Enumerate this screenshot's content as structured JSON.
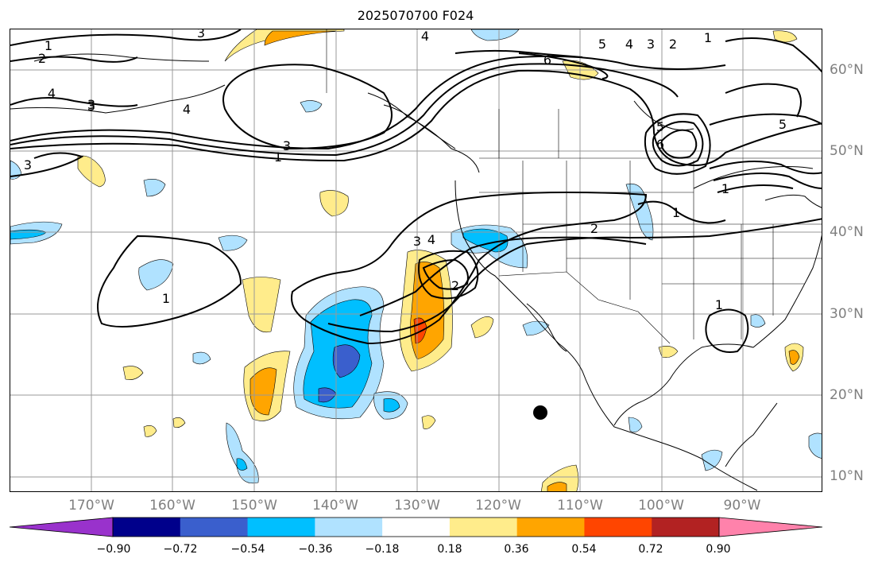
{
  "title": "2025070700 F024",
  "lon_labels": [
    "170°W",
    "160°W",
    "150°W",
    "140°W",
    "130°W",
    "120°W",
    "110°W",
    "100°W",
    "90°W"
  ],
  "lat_labels": [
    "60°N",
    "50°N",
    "40°N",
    "30°N",
    "20°N",
    "10°N"
  ],
  "colorbar": {
    "ticks": [
      "−0.90",
      "−0.72",
      "−0.54",
      "−0.36",
      "−0.18",
      "0.18",
      "0.36",
      "0.54",
      "0.72",
      "0.90"
    ],
    "colors": [
      "#9932cc",
      "#00008b",
      "#3a5fcd",
      "#00bfff",
      "#b0e2ff",
      "#ffffff",
      "#ffec8b",
      "#ffa500",
      "#ff4500",
      "#b22222",
      "#ff82ab"
    ]
  },
  "contour_labels": [
    "1",
    "2",
    "3",
    "4",
    "3",
    "4",
    "1",
    "3",
    "4",
    "6",
    "5",
    "4",
    "3",
    "2",
    "1",
    "3",
    "6",
    "5",
    "5",
    "1",
    "1",
    "2",
    "1",
    "3",
    "4",
    "2",
    "1",
    "3"
  ],
  "marker": "storm-dot"
}
